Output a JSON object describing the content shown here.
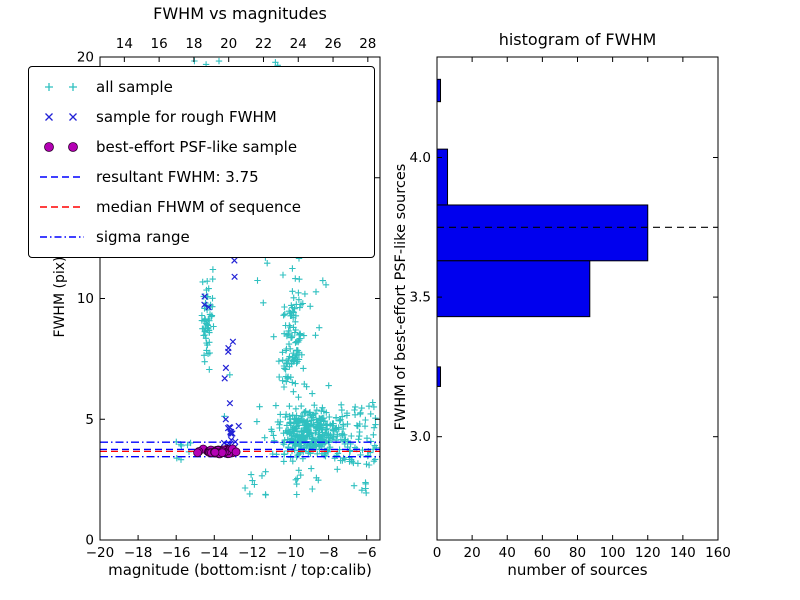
{
  "figure": {
    "left_plot": {
      "title": "FWHM vs magnitudes",
      "xlabel": "magnitude (bottom:isnt / top:calib)",
      "ylabel": "FWHM (pix)"
    },
    "right_plot": {
      "title": "histogram of FWHM",
      "xlabel": "number of sources",
      "ylabel": "FWHM of best-effort PSF-like sources"
    },
    "legend": {
      "items": [
        {
          "label": "all sample",
          "marker": "plus",
          "color": "#2fc0c0"
        },
        {
          "label": "sample for rough FWHM",
          "marker": "cross",
          "color": "#2222d6"
        },
        {
          "label": "best-effort PSF-like sample",
          "marker": "circle",
          "color": "#b400b4"
        },
        {
          "label": "resultant FWHM: 3.75",
          "marker": "dashed",
          "color": "#0000ff"
        },
        {
          "label": "median FHWM of sequence",
          "marker": "dashed",
          "color": "#ff0000"
        },
        {
          "label": "sigma range",
          "marker": "dashdot",
          "color": "#0000ff"
        }
      ]
    }
  },
  "chart_data": [
    {
      "type": "scatter",
      "title": "FWHM vs magnitudes",
      "xlabel": "magnitude (bottom:isnt / top:calib)",
      "ylabel": "FWHM (pix)",
      "xlim": [
        -20,
        -5.3
      ],
      "ylim": [
        0,
        20
      ],
      "xticks": [
        -20,
        -18,
        -16,
        -14,
        -12,
        -10,
        -8,
        -6
      ],
      "yticks": [
        0,
        5,
        10,
        15,
        20
      ],
      "top_axis": {
        "lim": [
          12.6,
          28.7
        ],
        "ticks": [
          14,
          16,
          18,
          20,
          22,
          24,
          26,
          28
        ]
      },
      "grid": false,
      "legend_position": "upper left",
      "hlines": [
        {
          "y": 3.75,
          "style": "dashed",
          "color": "#0000ff",
          "name": "resultant FWHM 3.75"
        },
        {
          "y": 3.67,
          "style": "dashed",
          "color": "#ff0000",
          "name": "median FHWM of sequence"
        },
        {
          "y": 3.45,
          "style": "dashdot",
          "color": "#0000ff",
          "name": "sigma range low"
        },
        {
          "y": 4.05,
          "style": "dashdot",
          "color": "#0000ff",
          "name": "sigma range high"
        }
      ],
      "note": "dense point clouds approximated by generative clusters (individual sources not resolvable)",
      "series": [
        {
          "name": "all sample",
          "marker": "plus",
          "color": "#2fc0c0",
          "seed": 1234,
          "clusters": [
            {
              "dist": "gauss",
              "cx": -9.0,
              "cy": 4.4,
              "sx": 1.5,
              "sy": 0.85,
              "n": 360
            },
            {
              "dist": "gauss",
              "cx": -9.9,
              "cy": 8.2,
              "sx": 0.5,
              "sy": 2.0,
              "n": 100
            },
            {
              "dist": "gauss",
              "cx": -14.4,
              "cy": 9.3,
              "sx": 0.25,
              "sy": 1.7,
              "n": 50
            },
            {
              "dist": "uniform",
              "x0": -15.3,
              "x1": -7.6,
              "y0": 12.3,
              "y1": 19.9,
              "n": 75
            },
            {
              "dist": "uniform",
              "x0": -12.5,
              "x1": -6.0,
              "y0": 1.8,
              "y1": 3.0,
              "n": 26
            },
            {
              "dist": "uniform",
              "x0": -7.4,
              "x1": -5.45,
              "y0": 3.1,
              "y1": 5.7,
              "n": 60
            },
            {
              "dist": "uniform",
              "x0": -16.3,
              "x1": -15.2,
              "y0": 3.3,
              "y1": 4.3,
              "n": 8
            },
            {
              "dist": "gauss",
              "cx": -10.3,
              "cy": 13.5,
              "sx": 0.8,
              "sy": 1.2,
              "n": 25
            },
            {
              "dist": "uniform",
              "x0": -15.0,
              "x1": -7.8,
              "y0": 4.5,
              "y1": 12.2,
              "n": 35
            }
          ]
        },
        {
          "name": "sample for rough FWHM",
          "marker": "cross",
          "color": "#2222d6",
          "seed": 77,
          "clusters": [
            {
              "dist": "uniform",
              "x0": -13.5,
              "x1": -12.7,
              "y0": 3.8,
              "y1": 19.8,
              "n": 22
            },
            {
              "dist": "gauss",
              "cx": -13.1,
              "cy": 4.4,
              "sx": 0.28,
              "sy": 0.55,
              "n": 12
            },
            {
              "dist": "gauss",
              "cx": -13.0,
              "cy": 12.4,
              "sx": 0.22,
              "sy": 0.9,
              "n": 8
            },
            {
              "dist": "uniform",
              "x0": -14.6,
              "x1": -14.15,
              "y0": 9.6,
              "y1": 11.4,
              "n": 3
            }
          ]
        },
        {
          "name": "best-effort PSF-like sample",
          "marker": "circle",
          "color": "#b400b4",
          "seed": 5,
          "clusters": [
            {
              "dist": "gauss",
              "cx": -13.8,
              "cy": 3.67,
              "sx": 0.72,
              "sy": 0.085,
              "n": 85
            }
          ]
        }
      ]
    },
    {
      "type": "bar",
      "orientation": "horizontal",
      "title": "histogram of FWHM",
      "xlabel": "number of sources",
      "ylabel": "FWHM of best-effort PSF-like sources",
      "xlim": [
        0,
        160
      ],
      "ylim": [
        2.63,
        4.36
      ],
      "xticks": [
        0,
        20,
        40,
        60,
        80,
        100,
        120,
        140,
        160
      ],
      "yticks": [
        3.0,
        3.5,
        4.0
      ],
      "grid": false,
      "bar_color": "#0000ee",
      "bars": [
        {
          "y0": 4.2,
          "y1": 4.28,
          "count": 2
        },
        {
          "y0": 3.83,
          "y1": 4.03,
          "count": 6
        },
        {
          "y0": 3.63,
          "y1": 3.83,
          "count": 120
        },
        {
          "y0": 3.43,
          "y1": 3.63,
          "count": 87
        },
        {
          "y0": 3.18,
          "y1": 3.25,
          "count": 2
        }
      ],
      "hline_dashed": 3.75
    }
  ]
}
